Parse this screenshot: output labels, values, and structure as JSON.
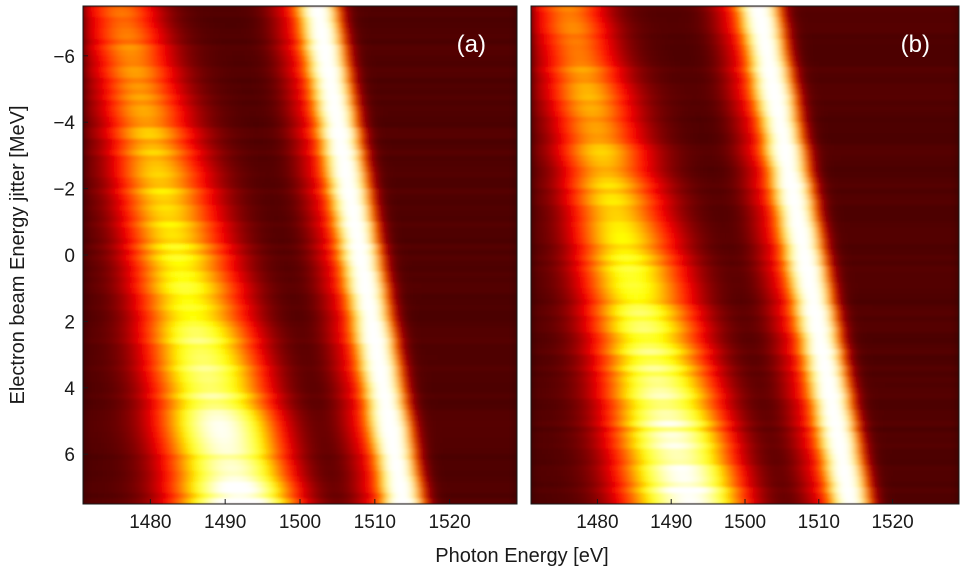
{
  "chart_data": [
    {
      "type": "heatmap",
      "panel_label": "(a)",
      "x_ticks": [
        1480,
        1490,
        1500,
        1510,
        1520
      ],
      "y_ticks": [
        -6,
        -4,
        -2,
        0,
        2,
        4,
        6
      ],
      "xlim": [
        1471,
        1529
      ],
      "ylim": [
        -7.5,
        7.5
      ],
      "y_reversed": true,
      "colormap": "hot",
      "features": [
        {
          "name": "main_peak",
          "x_at_top": 1502.5,
          "x_at_bottom": 1514.0,
          "intensity": 1.0
        },
        {
          "name": "secondary_band",
          "x_at_top": 1476.0,
          "x_at_bottom": 1490.0,
          "intensity_top": 0.55,
          "intensity_bottom": 1.0
        }
      ]
    },
    {
      "type": "heatmap",
      "panel_label": "(b)",
      "x_ticks": [
        1480,
        1490,
        1500,
        1510,
        1520
      ],
      "y_ticks": [
        -6,
        -4,
        -2,
        0,
        2,
        4,
        6
      ],
      "xlim": [
        1471,
        1529
      ],
      "ylim": [
        -7.5,
        7.5
      ],
      "y_reversed": true,
      "colormap": "hot",
      "features": [
        {
          "name": "main_peak",
          "x_at_top": 1502.0,
          "x_at_bottom": 1514.5,
          "intensity": 1.0
        },
        {
          "name": "secondary_band",
          "x_at_top": 1476.0,
          "x_at_bottom": 1490.5,
          "intensity_top": 0.55,
          "intensity_bottom": 1.0
        }
      ]
    }
  ],
  "labels": {
    "xlabel": "Photon Energy [eV]",
    "ylabel": "Electron beam Energy jitter [MeV]"
  }
}
